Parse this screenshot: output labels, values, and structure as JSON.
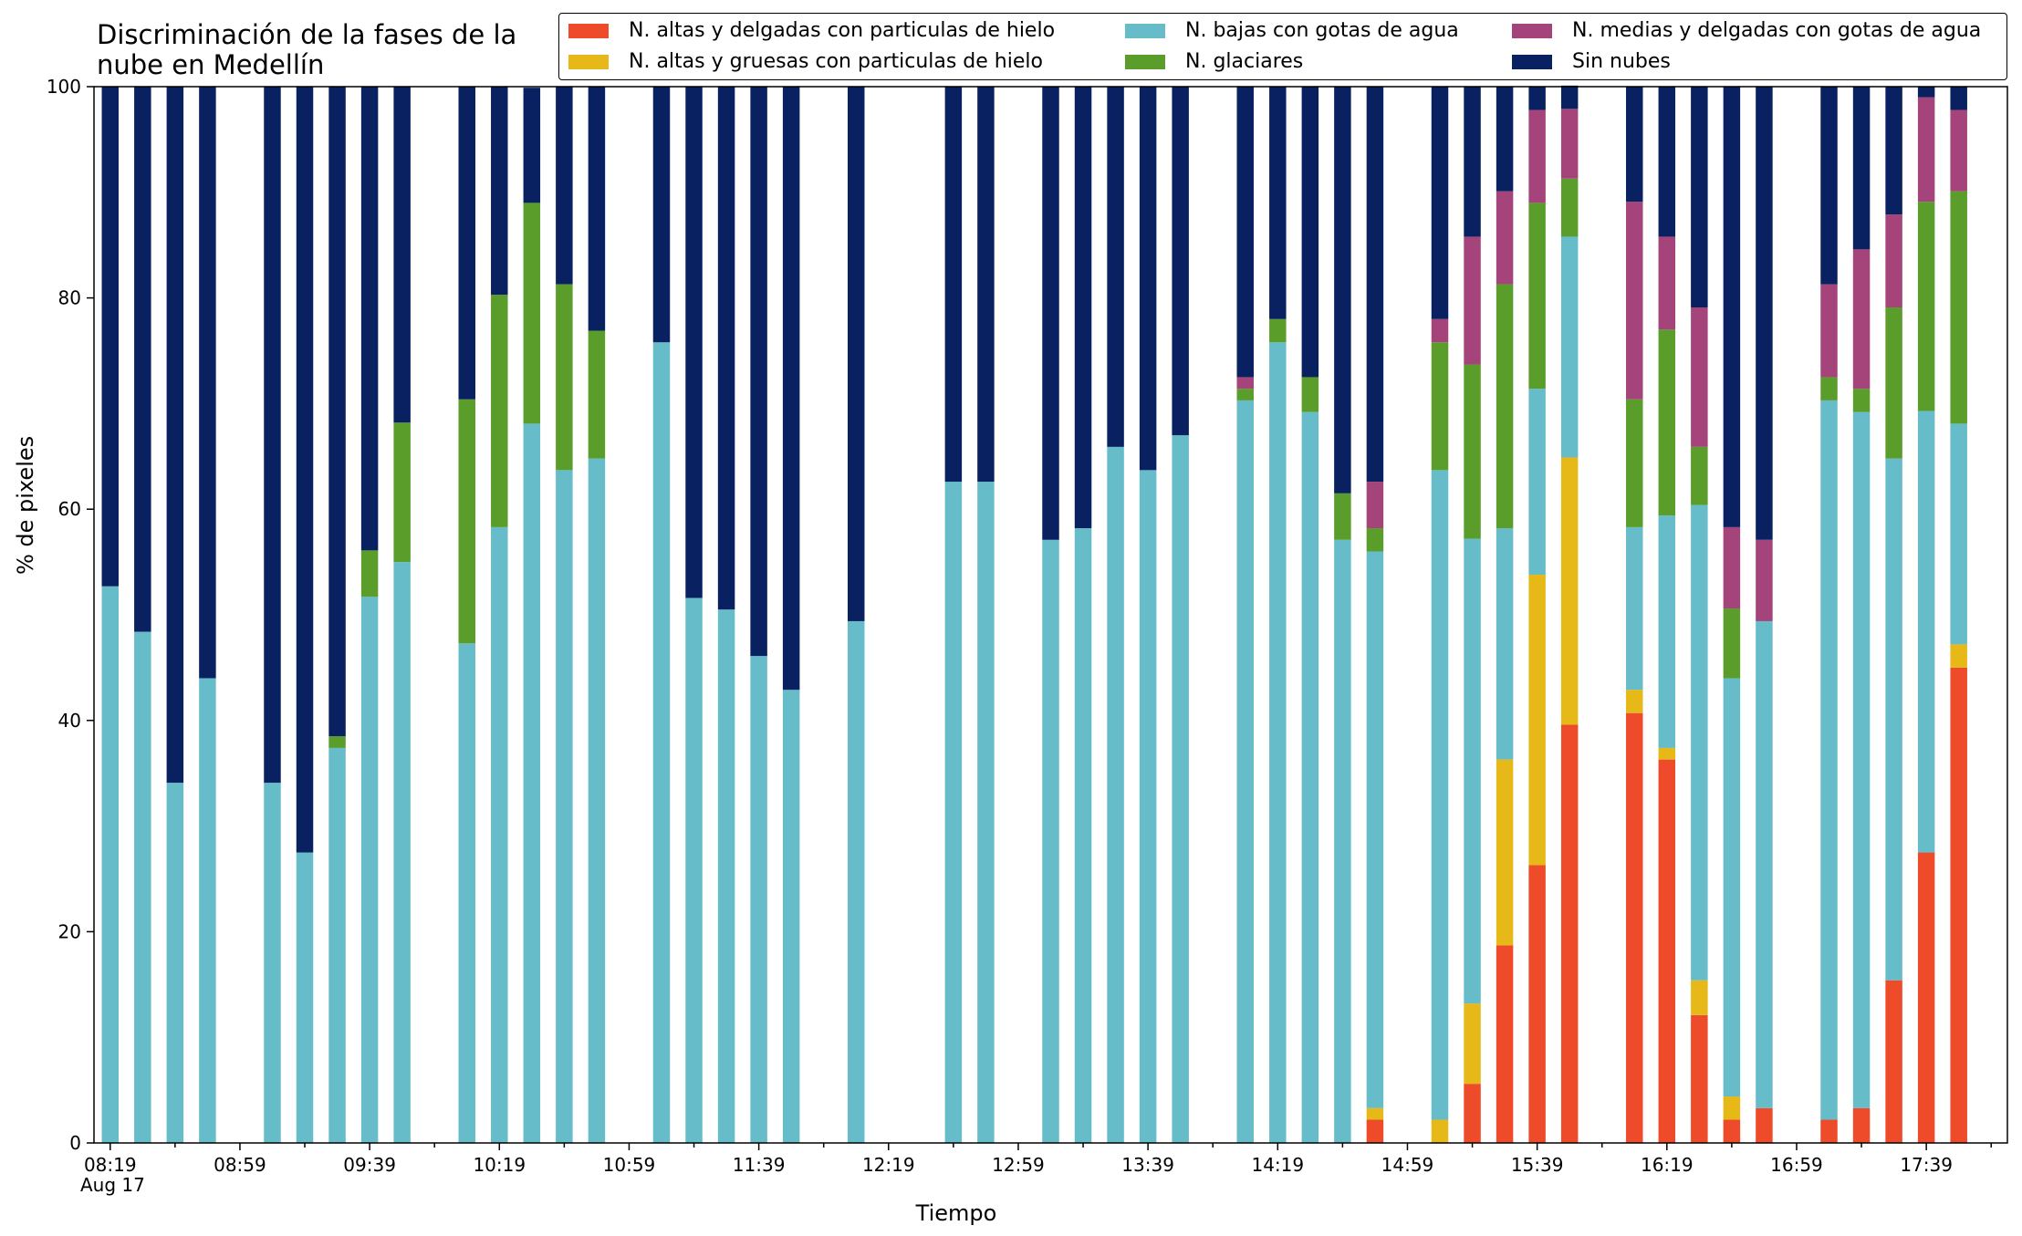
{
  "chart_data": {
    "type": "bar",
    "stacked": true,
    "title": "Discriminación de la fases de la\nnube en Medellín",
    "xlabel": "Tiempo",
    "ylabel": "% de pixeles",
    "ylim": [
      0,
      100
    ],
    "yticks": [
      0,
      20,
      40,
      60,
      80,
      100
    ],
    "xticks": [
      "08:19",
      "08:59",
      "09:39",
      "10:19",
      "10:59",
      "11:39",
      "12:19",
      "12:59",
      "13:39",
      "14:19",
      "14:59",
      "15:39",
      "16:19",
      "16:59",
      "17:39"
    ],
    "x_subtick_label": "Aug 17",
    "legend_position": "top-right",
    "legend_columns": 3,
    "bar_slots": 59,
    "series": [
      {
        "name": "N. altas y delgadas con particulas de hielo",
        "color": "#ee4b2b",
        "values": [
          0,
          0,
          0,
          0,
          null,
          0,
          0,
          0,
          0,
          0,
          null,
          0,
          0,
          0,
          0,
          0,
          null,
          0,
          0,
          0,
          0,
          0,
          null,
          0,
          null,
          null,
          0,
          0,
          null,
          0,
          0,
          0,
          0,
          0,
          null,
          0,
          0,
          0,
          0,
          2.2,
          null,
          0,
          5.6,
          18.7,
          26.3,
          39.6,
          null,
          40.7,
          36.3,
          12.1,
          2.2,
          3.3,
          null,
          2.2,
          3.3,
          15.4,
          27.5,
          45
        ]
      },
      {
        "name": "N. altas y gruesas con particulas de hielo",
        "color": "#e6b818",
        "values": [
          0,
          0,
          0,
          0,
          null,
          0,
          0,
          0,
          0,
          0,
          null,
          0,
          0,
          0,
          0,
          0,
          null,
          0,
          0,
          0,
          0,
          0,
          null,
          0,
          null,
          null,
          0,
          0,
          null,
          0,
          0,
          0,
          0,
          0,
          null,
          0,
          0,
          0,
          0,
          1.1,
          null,
          2.2,
          7.6,
          17.6,
          27.5,
          25.3,
          null,
          2.2,
          1.1,
          3.3,
          2.2,
          0,
          null,
          0,
          0,
          0,
          0,
          2.2
        ]
      },
      {
        "name": "N. bajas con gotas de agua",
        "color": "#67bcc9",
        "values": [
          52.7,
          48.4,
          34.1,
          44,
          null,
          34.1,
          27.5,
          37.4,
          51.7,
          55,
          null,
          47.3,
          58.3,
          68.1,
          63.7,
          64.8,
          null,
          75.8,
          51.6,
          50.5,
          46.1,
          42.9,
          null,
          49.4,
          null,
          null,
          62.6,
          62.6,
          null,
          57.1,
          58.2,
          65.9,
          63.7,
          67,
          null,
          70.3,
          75.8,
          69.2,
          57.1,
          52.7,
          null,
          61.5,
          44,
          21.9,
          17.6,
          20.9,
          null,
          15.4,
          22,
          45,
          39.6,
          46.1,
          null,
          68.1,
          65.9,
          49.4,
          41.8,
          20.9
        ]
      },
      {
        "name": "N. glaciares",
        "color": "#5a9d2a",
        "values": [
          0,
          0,
          0,
          0,
          null,
          0,
          0,
          1.1,
          4.4,
          13.2,
          null,
          23.1,
          22,
          20.9,
          17.6,
          12.1,
          null,
          0,
          0,
          0,
          0,
          0,
          null,
          0,
          null,
          null,
          0,
          0,
          null,
          0,
          0,
          0,
          0,
          0,
          null,
          1.1,
          2.2,
          3.3,
          4.4,
          2.2,
          null,
          12.1,
          16.5,
          23.1,
          17.6,
          5.5,
          null,
          12.1,
          17.6,
          5.5,
          6.6,
          0,
          null,
          2.2,
          2.2,
          14.3,
          19.8,
          22
        ]
      },
      {
        "name": "N. medias y delgadas con gotas de agua",
        "color": "#a4447a",
        "values": [
          0,
          0,
          0,
          0,
          null,
          0,
          0,
          0,
          0,
          0,
          null,
          0,
          0,
          0,
          0,
          0,
          null,
          0,
          0,
          0,
          0,
          0,
          null,
          0,
          null,
          null,
          0,
          0,
          null,
          0,
          0,
          0,
          0,
          0,
          null,
          1.1,
          0,
          0,
          0,
          4.4,
          null,
          2.2,
          12.1,
          8.8,
          8.8,
          6.6,
          null,
          18.7,
          8.8,
          13.2,
          7.7,
          7.7,
          null,
          8.8,
          13.2,
          8.8,
          9.9,
          7.7
        ]
      },
      {
        "name": "Sin nubes",
        "color": "#0a2161",
        "values": [
          47.3,
          51.6,
          65.9,
          56,
          null,
          65.9,
          72.5,
          61.5,
          43.9,
          31.8,
          null,
          29.6,
          19.7,
          10.9,
          18.7,
          23.1,
          null,
          24.2,
          48.4,
          49.5,
          53.9,
          57.1,
          null,
          50.6,
          null,
          null,
          37.4,
          37.4,
          null,
          42.9,
          41.8,
          34.1,
          36.3,
          33,
          null,
          27.5,
          22,
          27.5,
          38.5,
          37.4,
          null,
          22,
          14.2,
          9.9,
          2.2,
          2.2,
          null,
          10.9,
          14.2,
          20.9,
          41.7,
          42.9,
          null,
          18.7,
          15.4,
          12.1,
          1,
          2.2
        ]
      }
    ]
  }
}
